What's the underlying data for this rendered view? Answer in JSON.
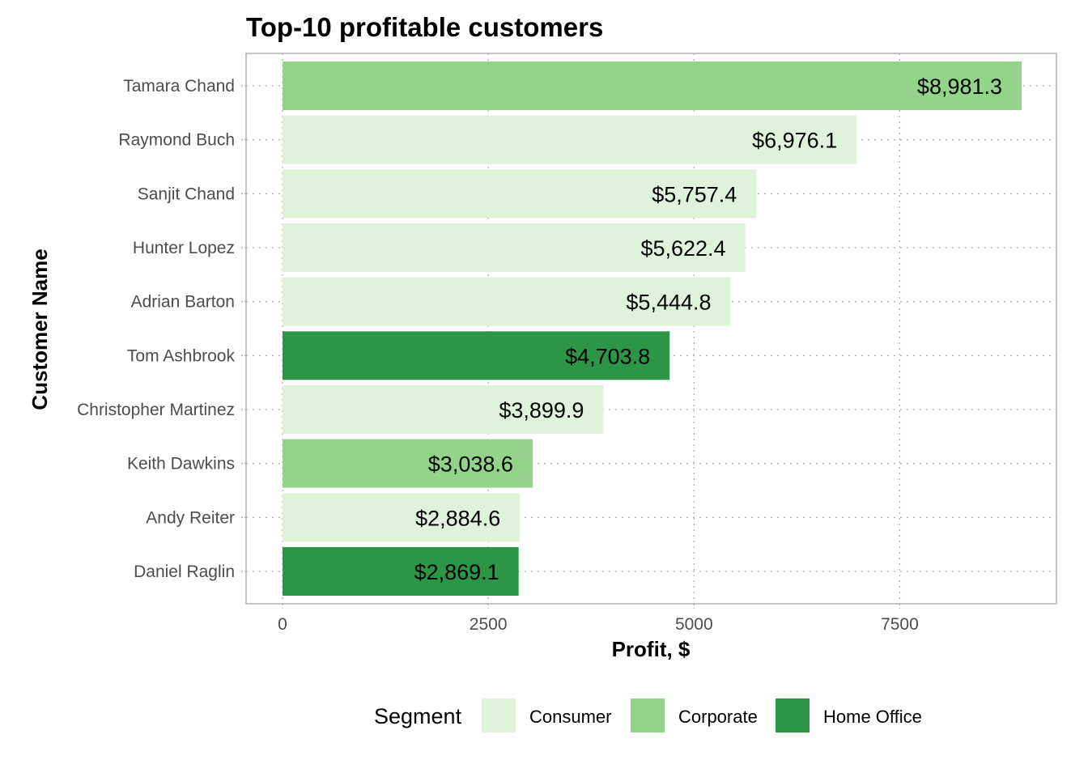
{
  "chart_data": {
    "type": "bar",
    "orientation": "horizontal",
    "title": "Top-10 profitable customers",
    "xlabel": "Profit, $",
    "ylabel": "Customer Name",
    "xlim": [
      -870,
      18800
    ],
    "xticks": [
      0,
      2500,
      5000,
      7500
    ],
    "grid": true,
    "categories": [
      "Tamara Chand",
      "Raymond Buch",
      "Sanjit Chand",
      "Hunter Lopez",
      "Adrian Barton",
      "Tom Ashbrook",
      "Christopher Martinez",
      "Keith Dawkins",
      "Andy Reiter",
      "Daniel Raglin"
    ],
    "values": [
      8981.3,
      6976.1,
      5757.4,
      5622.4,
      5444.8,
      4703.8,
      3899.9,
      3038.6,
      2884.6,
      2869.1
    ],
    "value_labels": [
      "$8,981.3",
      "$6,976.1",
      "$5,757.4",
      "$5,622.4",
      "$5,444.8",
      "$4,703.8",
      "$3,899.9",
      "$3,038.6",
      "$2,884.6",
      "$2,869.1"
    ],
    "segments": [
      "Corporate",
      "Consumer",
      "Consumer",
      "Consumer",
      "Consumer",
      "Home Office",
      "Consumer",
      "Corporate",
      "Consumer",
      "Home Office"
    ],
    "legend": {
      "title": "Segment",
      "placement": "bottom",
      "items": [
        {
          "name": "Consumer",
          "color": "#dff2da"
        },
        {
          "name": "Corporate",
          "color": "#94d38a"
        },
        {
          "name": "Home Office",
          "color": "#2c9646"
        }
      ]
    }
  }
}
